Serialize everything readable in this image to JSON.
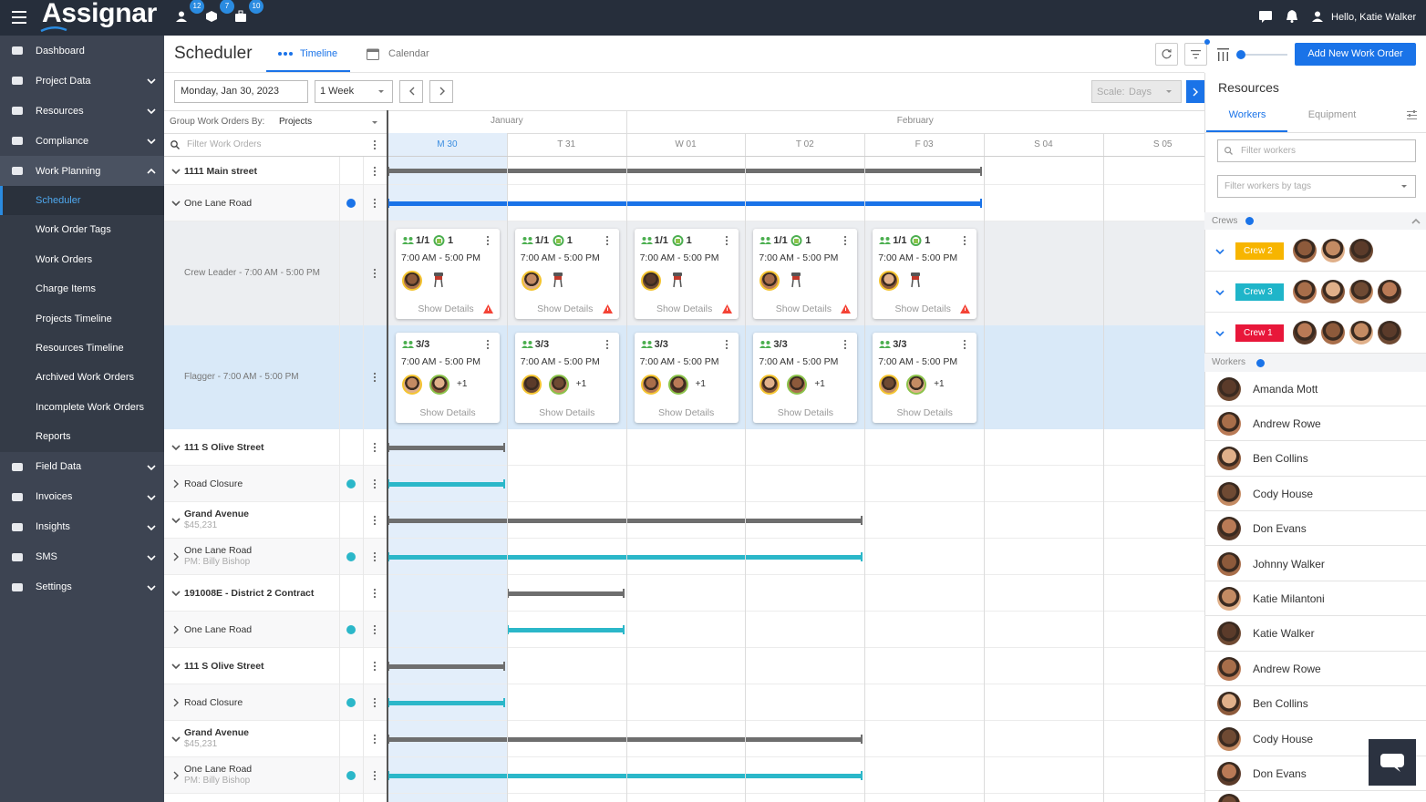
{
  "topbar": {
    "brand": "Assignar",
    "badges": [
      12,
      7,
      10
    ],
    "greeting": "Hello, Katie Walker"
  },
  "sidebar": {
    "active_child": 0,
    "items": [
      {
        "label": "Dashboard",
        "expandable": false
      },
      {
        "label": "Project Data",
        "expandable": true
      },
      {
        "label": "Resources",
        "expandable": true
      },
      {
        "label": "Compliance",
        "expandable": true
      },
      {
        "label": "Work Planning",
        "expandable": true,
        "open": true,
        "children": [
          "Scheduler",
          "Work Order Tags",
          "Work Orders",
          "Charge Items",
          "Projects Timeline",
          "Resources Timeline",
          "Archived Work Orders",
          "Incomplete Work Orders",
          "Reports"
        ]
      },
      {
        "label": "Field Data",
        "expandable": true
      },
      {
        "label": "Invoices",
        "expandable": true
      },
      {
        "label": "Insights",
        "expandable": true
      },
      {
        "label": "SMS",
        "expandable": true
      },
      {
        "label": "Settings",
        "expandable": true
      }
    ]
  },
  "header": {
    "title": "Scheduler",
    "tabs": [
      "Timeline",
      "Calendar"
    ],
    "add_button": "Add New Work Order"
  },
  "toolbar": {
    "date": "Monday, Jan 30, 2023",
    "range": "1 Week",
    "scale_label": "Scale:",
    "scale_value": "Days"
  },
  "grid": {
    "group_label": "Group Work Orders By:",
    "group_value": "Projects",
    "filter_placeholder": "Filter Work Orders",
    "months": [
      {
        "label": "January",
        "days": 2
      },
      {
        "label": "February",
        "days": 5
      }
    ],
    "days": [
      "M 30",
      "T 31",
      "W 01",
      "T 02",
      "F 03",
      "S 04",
      "S 05"
    ],
    "today": 0
  },
  "rows": [
    {
      "title": "1111 Main street",
      "expanded": true,
      "span": [
        0,
        4
      ],
      "color": "#6e6e6e"
    },
    {
      "title": "One Lane Road",
      "expanded": true,
      "span": [
        0,
        4
      ],
      "color": "#1a73e8",
      "dot": "#1a73e8"
    },
    {
      "label": "Crew Leader - 7:00 AM - 5:00 PM",
      "cards": [
        {
          "assigned": "1/1",
          "equipment": "1",
          "time": "7:00 AM - 5:00 PM",
          "action": "Show Details"
        },
        {
          "assigned": "1/1",
          "equipment": "1",
          "time": "7:00 AM - 5:00 PM",
          "action": "Show Details"
        },
        {
          "assigned": "1/1",
          "equipment": "1",
          "time": "7:00 AM - 5:00 PM",
          "action": "Show Details"
        },
        {
          "assigned": "1/1",
          "equipment": "1",
          "time": "7:00 AM - 5:00 PM",
          "action": "Show Details"
        },
        {
          "assigned": "1/1",
          "equipment": "1",
          "time": "7:00 AM - 5:00 PM",
          "action": "Show Details"
        }
      ]
    },
    {
      "label": "Flagger - 7:00 AM - 5:00 PM",
      "cards": [
        {
          "assigned": "3/3",
          "time": "7:00 AM - 5:00 PM",
          "extra": "+1",
          "action": "Show Details"
        },
        {
          "assigned": "3/3",
          "time": "7:00 AM - 5:00 PM",
          "extra": "+1",
          "action": "Show Details"
        },
        {
          "assigned": "3/3",
          "time": "7:00 AM - 5:00 PM",
          "extra": "+1",
          "action": "Show Details"
        },
        {
          "assigned": "3/3",
          "time": "7:00 AM - 5:00 PM",
          "extra": "+1",
          "action": "Show Details"
        },
        {
          "assigned": "3/3",
          "time": "7:00 AM - 5:00 PM",
          "extra": "+1",
          "action": "Show Details"
        }
      ]
    },
    {
      "title": "111 S Olive Street",
      "expanded": true,
      "span": [
        0,
        0
      ],
      "color": "#6e6e6e"
    },
    {
      "title": "Road Closure",
      "expanded": false,
      "span": [
        0,
        0
      ],
      "color": "#2bb7c9",
      "dot": "#2bb7c9"
    },
    {
      "title": "Grand Avenue",
      "subtitle": "$45,231",
      "expanded": true,
      "span": [
        0,
        3
      ],
      "color": "#6e6e6e"
    },
    {
      "title": "One Lane Road",
      "subtitle": "PM: Billy Bishop",
      "expanded": false,
      "span": [
        0,
        3
      ],
      "color": "#2bb7c9",
      "dot": "#2bb7c9"
    },
    {
      "title": "191008E - District 2 Contract",
      "expanded": true,
      "span": [
        1,
        1
      ],
      "color": "#6e6e6e"
    },
    {
      "title": "One Lane Road",
      "expanded": false,
      "span": [
        1,
        1
      ],
      "color": "#2bb7c9",
      "dot": "#2bb7c9"
    },
    {
      "title": "111 S Olive Street",
      "expanded": true,
      "span": [
        0,
        0
      ],
      "color": "#6e6e6e"
    },
    {
      "title": "Road Closure",
      "expanded": false,
      "span": [
        0,
        0
      ],
      "color": "#2bb7c9",
      "dot": "#2bb7c9"
    },
    {
      "title": "Grand Avenue",
      "subtitle": "$45,231",
      "expanded": true,
      "span": [
        0,
        3
      ],
      "color": "#6e6e6e"
    },
    {
      "title": "One Lane Road",
      "subtitle": "PM: Billy Bishop",
      "expanded": false,
      "span": [
        0,
        3
      ],
      "color": "#2bb7c9",
      "dot": "#2bb7c9"
    }
  ],
  "resources": {
    "title": "Resources",
    "tabs": [
      "Workers",
      "Equipment"
    ],
    "filter_placeholder": "Filter workers",
    "tags_placeholder": "Filter workers by tags",
    "crews_label": "Crews",
    "crews": [
      {
        "name": "Crew 2",
        "color": "#f7b500"
      },
      {
        "name": "Crew 3",
        "color": "#1fb5c9"
      },
      {
        "name": "Crew 1",
        "color": "#e8173a"
      }
    ],
    "workers_label": "Workers",
    "workers": [
      "Amanda Mott",
      "Andrew Rowe",
      "Ben Collins",
      "Cody House",
      "Don Evans",
      "Johnny Walker",
      "Katie Milantoni",
      "Katie Walker",
      "Andrew Rowe",
      "Ben Collins",
      "Cody House",
      "Don Evans"
    ]
  }
}
